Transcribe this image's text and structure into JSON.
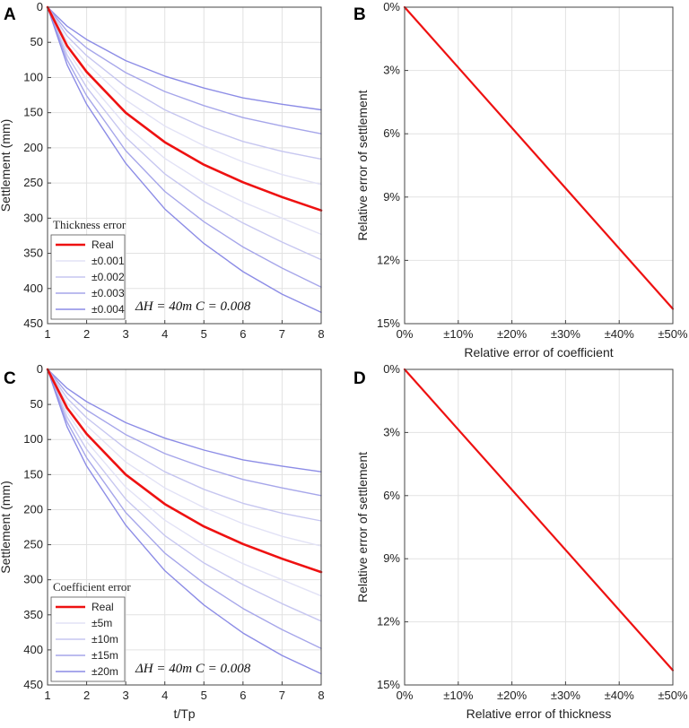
{
  "chart_data": [
    {
      "panel": "A",
      "type": "line",
      "xlabel": "",
      "ylabel": "Settlement (mm)",
      "xlim": [
        1,
        8
      ],
      "ylim": [
        0,
        450
      ],
      "yreverse": true,
      "xticks": [
        "1",
        "2",
        "3",
        "4",
        "5",
        "6",
        "7",
        "8"
      ],
      "yticks": [
        "0",
        "50",
        "100",
        "150",
        "200",
        "250",
        "300",
        "350",
        "400",
        "450"
      ],
      "legend_title": "Thickness error",
      "legend": [
        "Real",
        "±0.001",
        "±0.002",
        "±0.003",
        "±0.004"
      ],
      "annotation": "ΔH = 40m   C = 0.008",
      "x": [
        1,
        1.5,
        2,
        3,
        4,
        5,
        6,
        7,
        8
      ],
      "series": [
        {
          "name": "Real",
          "color": "#ee1111",
          "values": [
            0,
            55,
            92,
            150,
            192,
            224,
            249,
            270,
            289
          ]
        },
        {
          "name": "+0.004",
          "color": "#8c8ce6",
          "values": [
            0,
            27,
            46,
            76,
            98,
            115,
            129,
            138,
            146
          ]
        },
        {
          "name": "+0.003",
          "color": "#a6a6ea",
          "values": [
            0,
            34,
            58,
            93,
            120,
            140,
            157,
            169,
            180
          ]
        },
        {
          "name": "+0.002",
          "color": "#c6c6f0",
          "values": [
            0,
            41,
            69,
            113,
            146,
            171,
            191,
            205,
            216
          ]
        },
        {
          "name": "+0.001",
          "color": "#e2e2f6",
          "values": [
            0,
            48,
            80,
            132,
            169,
            197,
            220,
            238,
            252
          ]
        },
        {
          "name": "-0.001",
          "color": "#e2e2f6",
          "values": [
            0,
            61,
            103,
            168,
            215,
            250,
            277,
            300,
            323
          ]
        },
        {
          "name": "-0.002",
          "color": "#c6c6f0",
          "values": [
            0,
            68,
            114,
            185,
            237,
            276,
            307,
            334,
            359
          ]
        },
        {
          "name": "-0.003",
          "color": "#a6a6ea",
          "values": [
            0,
            75,
            126,
            204,
            262,
            305,
            341,
            371,
            398
          ]
        },
        {
          "name": "-0.004",
          "color": "#8c8ce6",
          "values": [
            0,
            82,
            138,
            222,
            287,
            336,
            376,
            408,
            434
          ]
        }
      ]
    },
    {
      "panel": "B",
      "type": "line",
      "xlabel": "Relative error of coefficient",
      "ylabel": "Relative error of settlement",
      "yreverse": true,
      "xticks": [
        "0%",
        "±10%",
        "±20%",
        "±30%",
        "±40%",
        "±50%"
      ],
      "yticks": [
        "0%",
        "3%",
        "6%",
        "9%",
        "12%",
        "15%"
      ],
      "xlim": [
        0,
        50
      ],
      "ylim": [
        0,
        15
      ],
      "x": [
        0,
        50
      ],
      "series": [
        {
          "name": "Relative error",
          "color": "#ee1111",
          "values": [
            0,
            14.3
          ]
        }
      ]
    },
    {
      "panel": "C",
      "type": "line",
      "xlabel": "t/Tp",
      "ylabel": "Settlement (mm)",
      "xlim": [
        1,
        8
      ],
      "ylim": [
        0,
        450
      ],
      "yreverse": true,
      "xticks": [
        "1",
        "2",
        "3",
        "4",
        "5",
        "6",
        "7",
        "8"
      ],
      "yticks": [
        "0",
        "50",
        "100",
        "150",
        "200",
        "250",
        "300",
        "350",
        "400",
        "450"
      ],
      "legend_title": "Coefficient error",
      "legend": [
        "Real",
        "±5m",
        "±10m",
        "±15m",
        "±20m"
      ],
      "annotation": "ΔH = 40m   C = 0.008",
      "x": [
        1,
        1.5,
        2,
        3,
        4,
        5,
        6,
        7,
        8
      ],
      "series": [
        {
          "name": "Real",
          "color": "#ee1111",
          "values": [
            0,
            55,
            92,
            150,
            192,
            224,
            249,
            270,
            289
          ]
        },
        {
          "name": "+20m",
          "color": "#8c8ce6",
          "values": [
            0,
            27,
            46,
            76,
            98,
            115,
            129,
            138,
            146
          ]
        },
        {
          "name": "+15m",
          "color": "#a6a6ea",
          "values": [
            0,
            34,
            58,
            93,
            120,
            140,
            157,
            169,
            180
          ]
        },
        {
          "name": "+10m",
          "color": "#c6c6f0",
          "values": [
            0,
            41,
            69,
            113,
            146,
            171,
            191,
            205,
            216
          ]
        },
        {
          "name": "+5m",
          "color": "#e2e2f6",
          "values": [
            0,
            48,
            80,
            132,
            169,
            197,
            220,
            238,
            252
          ]
        },
        {
          "name": "-5m",
          "color": "#e2e2f6",
          "values": [
            0,
            61,
            103,
            168,
            215,
            250,
            277,
            300,
            323
          ]
        },
        {
          "name": "-10m",
          "color": "#c6c6f0",
          "values": [
            0,
            68,
            114,
            185,
            237,
            276,
            307,
            334,
            359
          ]
        },
        {
          "name": "-15m",
          "color": "#a6a6ea",
          "values": [
            0,
            75,
            126,
            204,
            262,
            305,
            341,
            371,
            398
          ]
        },
        {
          "name": "-20m",
          "color": "#8c8ce6",
          "values": [
            0,
            82,
            138,
            222,
            287,
            336,
            376,
            408,
            434
          ]
        }
      ]
    },
    {
      "panel": "D",
      "type": "line",
      "xlabel": "Relative error of thickness",
      "ylabel": "Relative error of settlement",
      "yreverse": true,
      "xticks": [
        "0%",
        "±10%",
        "±20%",
        "±30%",
        "±40%",
        "±50%"
      ],
      "yticks": [
        "0%",
        "3%",
        "6%",
        "9%",
        "12%",
        "15%"
      ],
      "xlim": [
        0,
        50
      ],
      "ylim": [
        0,
        15
      ],
      "x": [
        0,
        50
      ],
      "series": [
        {
          "name": "Relative error",
          "color": "#ee1111",
          "values": [
            0,
            14.3
          ]
        }
      ]
    }
  ]
}
